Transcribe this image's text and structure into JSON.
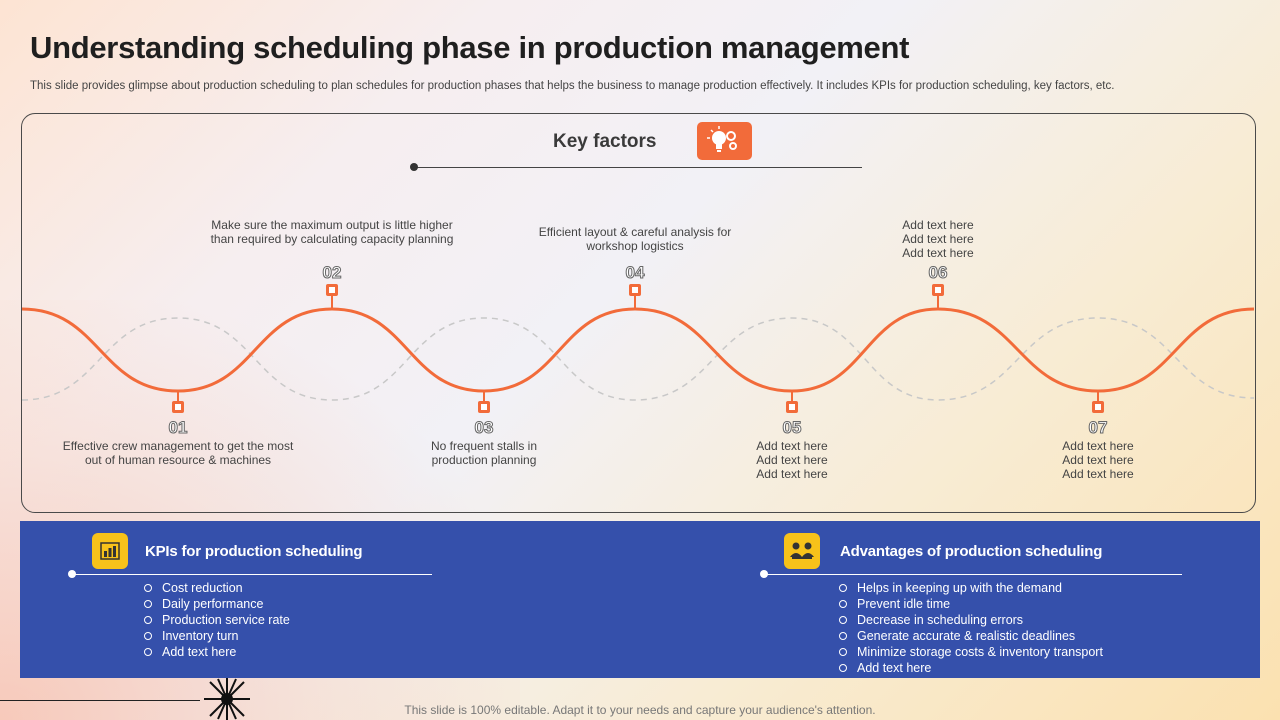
{
  "header": {
    "title": "Understanding scheduling phase in production management",
    "subtitle": "This slide provides glimpse about production scheduling to plan schedules for production phases that helps the business to manage production effectively. It includes KPIs for production scheduling, key factors, etc."
  },
  "key_factors": {
    "title": "Key factors",
    "icon": "lightbulb-gears-icon",
    "accent_color": "#f26b3a",
    "steps": [
      {
        "num": "01",
        "text": "Effective crew management to get the most out of human resource & machines"
      },
      {
        "num": "02",
        "text": "Make sure the maximum output is little higher than required by calculating capacity planning"
      },
      {
        "num": "03",
        "text": "No frequent stalls in production planning"
      },
      {
        "num": "04",
        "text": "Efficient layout & careful analysis for workshop logistics"
      },
      {
        "num": "05",
        "text": "Add text here\nAdd text here\nAdd text here"
      },
      {
        "num": "06",
        "text": "Add text here\nAdd text here\nAdd text here"
      },
      {
        "num": "07",
        "text": "Add text here\nAdd text here\nAdd text here"
      }
    ]
  },
  "kpis": {
    "title": "KPIs for production scheduling",
    "icon": "bar-chart-icon",
    "items": [
      "Cost reduction",
      "Daily performance",
      "Production service rate",
      "Inventory  turn",
      "Add text here"
    ]
  },
  "advantages": {
    "title": "Advantages of production scheduling",
    "icon": "team-meeting-icon",
    "items": [
      "Helps in keeping up with the demand",
      "Prevent  idle time",
      "Decrease in scheduling errors",
      "Generate accurate & realistic deadlines",
      "Minimize storage costs & inventory  transport",
      "Add text here"
    ]
  },
  "footer": {
    "note": "This slide is 100% editable. Adapt it to your needs and capture your audience's attention."
  },
  "colors": {
    "panel_blue": "#3550ab",
    "icon_yellow": "#f7c21a"
  }
}
